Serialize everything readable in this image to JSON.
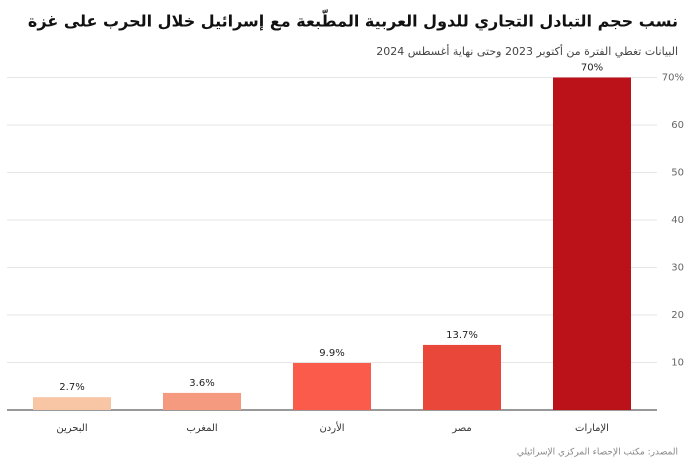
{
  "chart_data": {
    "type": "bar",
    "title": "نسب حجم التبادل التجاري للدول العربية المطّبعة مع إسرائيل خلال الحرب على غزة",
    "subtitle": "البيانات تغطي الفترة من أكتوبر 2023 وحتى نهاية أغسطس 2024",
    "source": "المصدر: مكتب الإحصاء المركزي الإسرائيلي",
    "categories": [
      "البحرين",
      "المغرب",
      "الأردن",
      "مصر",
      "الإمارات"
    ],
    "values": [
      2.7,
      3.6,
      9.9,
      13.7,
      70
    ],
    "value_labels": [
      "2.7%",
      "3.6%",
      "9.9%",
      "13.7%",
      "70%"
    ],
    "colors": [
      "#f9c6a5",
      "#f59a7e",
      "#fa5b4b",
      "#e8473a",
      "#bb1219"
    ],
    "ylim": [
      0,
      72
    ],
    "yticks": [
      10,
      20,
      30,
      40,
      50,
      60,
      {
        "value": 70,
        "label": "70%"
      }
    ],
    "grid": true
  }
}
